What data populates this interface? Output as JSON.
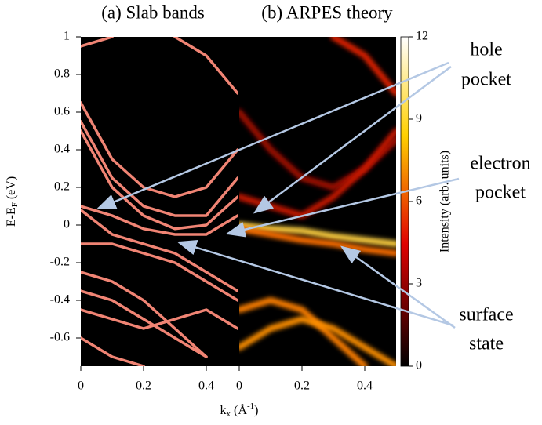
{
  "chart_data": [
    {
      "type": "line",
      "title": "(a) Slab bands",
      "color": "#f08474",
      "x": [
        0,
        0.1,
        0.2,
        0.3,
        0.4,
        0.5
      ],
      "xlim": [
        0,
        0.5
      ],
      "xticks": [
        0,
        0.2,
        0.4
      ],
      "ylim": [
        -0.75,
        1
      ],
      "yticks": [
        -0.6,
        -0.4,
        -0.2,
        0,
        0.2,
        0.4,
        0.6,
        0.8,
        1
      ],
      "ylabel": [
        "E-E",
        "F",
        " (eV)"
      ],
      "series": [
        {
          "values": [
            0.65,
            0.35,
            0.2,
            0.15,
            0.2,
            0.4
          ]
        },
        {
          "values": [
            0.55,
            0.25,
            0.1,
            0.05,
            0.05,
            0.25
          ]
        },
        {
          "values": [
            0.5,
            0.2,
            0.05,
            -0.02,
            0,
            0.15
          ]
        },
        {
          "values": [
            0.1,
            0.05,
            -0.02,
            -0.05,
            -0.05,
            0.05
          ]
        },
        {
          "values": [
            0.08,
            -0.05,
            -0.1,
            -0.15,
            -0.25,
            -0.35
          ]
        },
        {
          "values": [
            -0.1,
            -0.1,
            -0.15,
            -0.2,
            -0.3,
            -0.4
          ]
        },
        {
          "values": [
            -0.25,
            -0.3,
            -0.4,
            -0.55,
            -0.7,
            null
          ]
        },
        {
          "values": [
            -0.35,
            -0.4,
            -0.5,
            -0.6,
            -0.7,
            null
          ]
        },
        {
          "values": [
            -0.45,
            -0.5,
            -0.55,
            -0.5,
            -0.45,
            -0.55
          ]
        },
        {
          "values": [
            -0.6,
            -0.7,
            -0.75,
            null,
            null,
            null
          ]
        },
        {
          "values": [
            0.95,
            1,
            null,
            null,
            null,
            null
          ]
        },
        {
          "values": [
            null,
            null,
            null,
            1,
            0.9,
            0.7
          ]
        }
      ]
    },
    {
      "type": "heatmap",
      "title": "(b) ARPES theory",
      "x": [
        0,
        0.1,
        0.2,
        0.3,
        0.4,
        0.5
      ],
      "xlim": [
        0,
        0.5
      ],
      "xticks": [
        0,
        0.2,
        0.4
      ],
      "ylim": [
        -0.75,
        1
      ],
      "series": [
        {
          "color": "#e02000",
          "values": [
            null,
            null,
            null,
            1,
            0.9,
            0.7
          ]
        },
        {
          "color": "#a01000",
          "values": [
            0.6,
            0.4,
            0.25,
            0.2,
            0.3,
            0.45
          ]
        },
        {
          "color": "#c81800",
          "values": [
            0.15,
            0.1,
            0.05,
            0.15,
            0.3,
            0.5
          ]
        },
        {
          "color": "#ffd040",
          "values": [
            0,
            -0.02,
            -0.03,
            -0.06,
            -0.08,
            -0.1
          ]
        },
        {
          "color": "#ff7000",
          "values": [
            -0.02,
            -0.05,
            -0.08,
            -0.1,
            -0.13,
            -0.15
          ]
        },
        {
          "color": "#ff8000",
          "values": [
            -0.45,
            -0.4,
            -0.45,
            -0.6,
            -0.75,
            null
          ]
        },
        {
          "color": "#ff9000",
          "values": [
            -0.65,
            -0.55,
            -0.5,
            -0.55,
            -0.65,
            -0.75
          ]
        }
      ],
      "colorbar": {
        "label": "Intensity (arb. units)",
        "clim": [
          0,
          12
        ],
        "ticks": [
          0,
          3,
          6,
          9,
          12
        ],
        "colormap": "hot"
      }
    }
  ],
  "figure": {
    "xlabel": [
      "k",
      "x",
      " (Å",
      "-1",
      ")"
    ],
    "annotations": [
      {
        "lines": [
          "hole",
          "pocket"
        ]
      },
      {
        "lines": [
          "electron",
          "pocket"
        ]
      },
      {
        "lines": [
          "surface",
          "state"
        ]
      }
    ]
  }
}
